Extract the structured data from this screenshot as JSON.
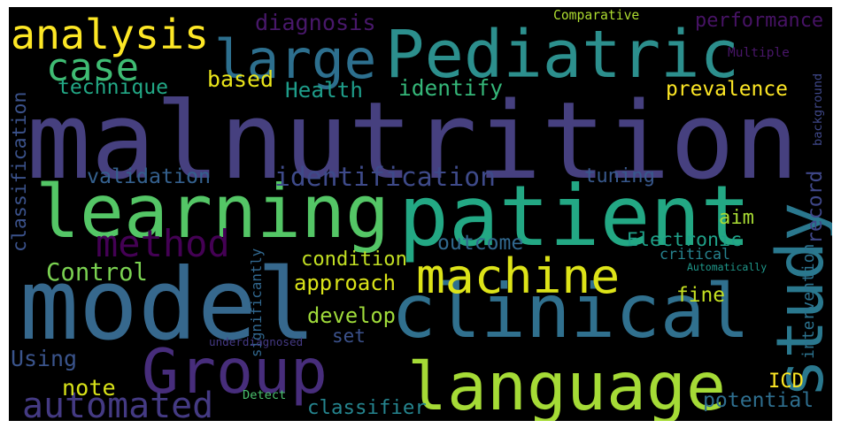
{
  "words": [
    {
      "id": "malnutrition",
      "text": "malnutrition",
      "color": "#46407f"
    },
    {
      "id": "model",
      "text": "model",
      "color": "#36688d"
    },
    {
      "id": "clinical",
      "text": "clinical",
      "color": "#30708e"
    },
    {
      "id": "patient",
      "text": "patient",
      "color": "#23a884"
    },
    {
      "id": "pediatric",
      "text": "Pediatric",
      "color": "#2c8f8d"
    },
    {
      "id": "learning",
      "text": "learning",
      "color": "#54c666"
    },
    {
      "id": "language",
      "text": "language",
      "color": "#a5db36"
    },
    {
      "id": "group",
      "text": "Group",
      "color": "#472d7b"
    },
    {
      "id": "machine",
      "text": "machine",
      "color": "#dde318"
    },
    {
      "id": "large",
      "text": "large",
      "color": "#2d6f8e"
    },
    {
      "id": "study",
      "text": "study",
      "color": "#2a788e"
    },
    {
      "id": "analysis",
      "text": "analysis",
      "color": "#fde725"
    },
    {
      "id": "method",
      "text": "method",
      "color": "#440154"
    },
    {
      "id": "automated",
      "text": "automated",
      "color": "#443a83"
    },
    {
      "id": "case",
      "text": "case",
      "color": "#3fbc73"
    },
    {
      "id": "classification",
      "text": "classification",
      "color": "#3b528b"
    },
    {
      "id": "identification",
      "text": "identification",
      "color": "#3e4a89"
    },
    {
      "id": "diagnosis",
      "text": "diagnosis",
      "color": "#48186a"
    },
    {
      "id": "performance",
      "text": "performance",
      "color": "#471365"
    },
    {
      "id": "electronic",
      "text": "Electronic",
      "color": "#1fa088"
    },
    {
      "id": "control",
      "text": "Control",
      "color": "#7ad151"
    },
    {
      "id": "intervention",
      "text": "intervention",
      "color": "#2c728e"
    },
    {
      "id": "critical",
      "text": "critical",
      "color": "#26828e"
    },
    {
      "id": "outcome",
      "text": "outcome",
      "color": "#31688e"
    },
    {
      "id": "condition",
      "text": "condition",
      "color": "#c2df23"
    },
    {
      "id": "approach",
      "text": "approach",
      "color": "#dae319"
    },
    {
      "id": "develop",
      "text": "develop",
      "color": "#9fda3a"
    },
    {
      "id": "technique",
      "text": "technique",
      "color": "#22a785"
    },
    {
      "id": "health",
      "text": "Health",
      "color": "#1e9c89"
    },
    {
      "id": "identify",
      "text": "identify",
      "color": "#35b779"
    },
    {
      "id": "prevalence",
      "text": "prevalence",
      "color": "#fde725"
    },
    {
      "id": "validation",
      "text": "validation",
      "color": "#34608d"
    },
    {
      "id": "tuning",
      "text": "tuning",
      "color": "#38588c"
    },
    {
      "id": "record",
      "text": "record",
      "color": "#3f4788"
    },
    {
      "id": "aim",
      "text": "aim",
      "color": "#a8db34"
    },
    {
      "id": "based",
      "text": "based",
      "color": "#eae51a"
    },
    {
      "id": "fine",
      "text": "fine",
      "color": "#c5e021"
    },
    {
      "id": "set",
      "text": "set",
      "color": "#3b518b"
    },
    {
      "id": "using",
      "text": "Using",
      "color": "#3a548c"
    },
    {
      "id": "note",
      "text": "note",
      "color": "#d8e219"
    },
    {
      "id": "classifier",
      "text": "classifier",
      "color": "#25848e"
    },
    {
      "id": "potential",
      "text": "potential",
      "color": "#2e6e8e"
    },
    {
      "id": "icd",
      "text": "ICD",
      "color": "#fde725"
    },
    {
      "id": "comparative",
      "text": "Comparative",
      "color": "#addc30"
    },
    {
      "id": "multiple",
      "text": "Multiple",
      "color": "#481668"
    },
    {
      "id": "background",
      "text": "background",
      "color": "#3f4889"
    },
    {
      "id": "significantly",
      "text": "significantly",
      "color": "#31678e"
    },
    {
      "id": "automatically",
      "text": "Automatically",
      "color": "#1f988b"
    },
    {
      "id": "underdiagnosed",
      "text": "underdiagnosed",
      "color": "#443983"
    },
    {
      "id": "detect",
      "text": "Detect",
      "color": "#4ac16d"
    }
  ]
}
